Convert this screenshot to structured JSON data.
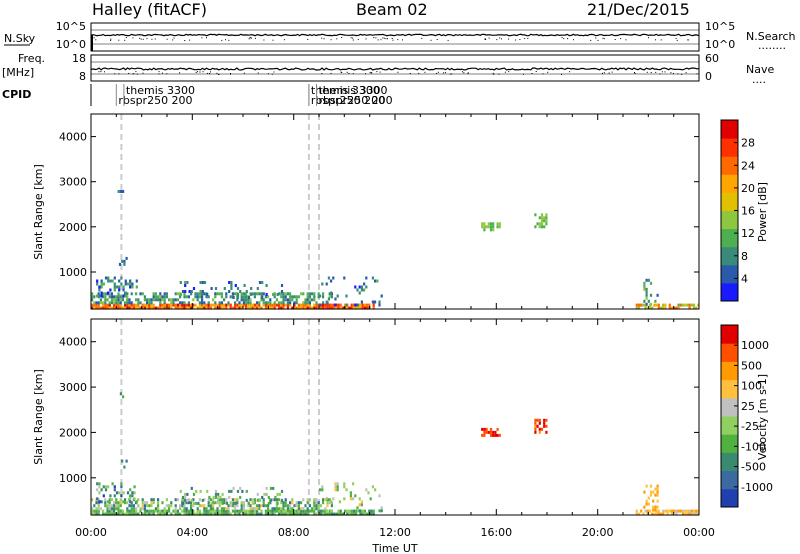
{
  "header": {
    "title": "Halley (fitACF)",
    "beam": "Beam 02",
    "date": "21/Dec/2015"
  },
  "nsky_panel": {
    "label": "N.Sky",
    "left_ticks": [
      "10^5",
      "10^0"
    ],
    "right_ticks": [
      "10^5",
      "10^0"
    ],
    "right_label": "N.Search",
    "right_dots": "........"
  },
  "freq_panel": {
    "label": "Freq.",
    "unit": "[MHz]",
    "left_ticks": [
      "18",
      "8"
    ],
    "right_ticks": [
      "60",
      "0"
    ],
    "right_label": "Nave",
    "right_dots": "...."
  },
  "cpid_panel": {
    "label": "CPID",
    "annotations": [
      {
        "time": 1.0,
        "text": "rbspr250 200",
        "row": 2
      },
      {
        "time": 1.3,
        "text": "themis 3300",
        "row": 1
      },
      {
        "time": 8.6,
        "text": "themis 3300",
        "row": 1
      },
      {
        "time": 8.9,
        "text": "themis 3300",
        "row": 1
      },
      {
        "time": 8.6,
        "text": "rbspr250 200",
        "row": 2
      },
      {
        "time": 8.9,
        "text": "rbspr250 200",
        "row": 2
      }
    ]
  },
  "chart_data": {
    "type": "heatmap",
    "x_range_hours": [
      0,
      24
    ],
    "x_ticks": [
      "00:00",
      "04:00",
      "08:00",
      "12:00",
      "16:00",
      "20:00",
      "00:00"
    ],
    "xlabel": "Time UT",
    "ylabel": "Slant Range [km]",
    "y_range_km": [
      180,
      4500
    ],
    "y_ticks": [
      1000,
      2000,
      3000,
      4000
    ],
    "y_tick_labels": [
      "1000",
      "2000",
      "3000",
      "4000"
    ],
    "gaps_hours": [
      1.2,
      8.6,
      9.0
    ],
    "power": {
      "label": "Power [dB]",
      "range": [
        0,
        32
      ],
      "colorbar_ticks": [
        "28",
        "24",
        "20",
        "16",
        "12",
        "8",
        "4"
      ],
      "colors": [
        "#1a1aff",
        "#2a5aaa",
        "#3a8a7a",
        "#4caf50",
        "#8dc63f",
        "#e0c000",
        "#ffa500",
        "#ff6a00",
        "#ff3000",
        "#e00000"
      ]
    },
    "velocity": {
      "label": "Velocity [m s-1]",
      "colorbar_ticks": [
        "1000",
        "500",
        "100",
        "25",
        "-25",
        "-100",
        "-500",
        "-1000"
      ],
      "colors": [
        "#2040b0",
        "#3a6aa0",
        "#3a8a70",
        "#50b040",
        "#90d060",
        "#c0c0c0",
        "#ffc040",
        "#ff9a00",
        "#ff5000",
        "#e00000"
      ]
    },
    "echo_regions": [
      {
        "t0": 0.0,
        "t1": 11.2,
        "r0": 180,
        "r1": 300,
        "density": 0.9,
        "power": [
          18,
          30
        ],
        "vel": [
          2,
          4
        ]
      },
      {
        "t0": 0.0,
        "t1": 9.5,
        "r0": 300,
        "r1": 550,
        "density": 0.55,
        "power": [
          4,
          14
        ],
        "vel": [
          1,
          6
        ]
      },
      {
        "t0": 0.2,
        "t1": 1.8,
        "r0": 500,
        "r1": 900,
        "density": 0.35,
        "power": [
          2,
          12
        ],
        "vel": [
          0,
          5
        ]
      },
      {
        "t0": 3.5,
        "t1": 7.5,
        "r0": 450,
        "r1": 800,
        "density": 0.2,
        "power": [
          2,
          10
        ],
        "vel": [
          1,
          5
        ]
      },
      {
        "t0": 9.0,
        "t1": 11.5,
        "r0": 300,
        "r1": 900,
        "density": 0.12,
        "power": [
          2,
          10
        ],
        "vel": [
          2,
          6
        ]
      },
      {
        "t0": 15.4,
        "t1": 16.1,
        "r0": 1950,
        "r1": 2100,
        "density": 0.6,
        "power": [
          10,
          16
        ],
        "vel": [
          8,
          9
        ]
      },
      {
        "t0": 17.5,
        "t1": 18.0,
        "r0": 2000,
        "r1": 2300,
        "density": 0.5,
        "power": [
          10,
          16
        ],
        "vel": [
          7,
          9
        ]
      },
      {
        "t0": 21.5,
        "t1": 24.0,
        "r0": 180,
        "r1": 300,
        "density": 0.7,
        "power": [
          12,
          26
        ],
        "vel": [
          5,
          7
        ]
      },
      {
        "t0": 21.8,
        "t1": 22.4,
        "r0": 300,
        "r1": 850,
        "density": 0.25,
        "power": [
          4,
          14
        ],
        "vel": [
          6,
          7
        ]
      },
      {
        "t0": 1.05,
        "t1": 1.25,
        "r0": 2800,
        "r1": 2950,
        "density": 0.3,
        "power": [
          4,
          8
        ],
        "vel": [
          1,
          3
        ]
      },
      {
        "t0": 1.1,
        "t1": 1.4,
        "r0": 1200,
        "r1": 1400,
        "density": 0.3,
        "power": [
          4,
          8
        ],
        "vel": [
          1,
          3
        ]
      }
    ]
  }
}
